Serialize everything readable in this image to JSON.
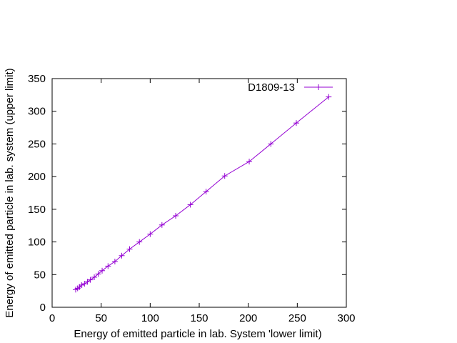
{
  "chart_data": {
    "type": "line",
    "title": "",
    "xlabel": "Energy of emitted particle in lab. System 'lower limit)",
    "ylabel": "Energy of emitted particle in lab. system (upper limit)",
    "xlim": [
      0,
      300
    ],
    "ylim": [
      0,
      350
    ],
    "xticks": [
      0,
      50,
      100,
      150,
      200,
      250,
      300
    ],
    "yticks": [
      0,
      50,
      100,
      150,
      200,
      250,
      300,
      350
    ],
    "grid": false,
    "legend_position": "top-right",
    "series": [
      {
        "name": "D1809-13",
        "color": "#9400d3",
        "marker": "plus",
        "x": [
          24,
          26,
          28,
          30,
          33,
          36,
          39,
          43,
          47,
          51,
          57,
          64,
          71,
          79,
          89,
          100,
          112,
          126,
          141,
          157,
          176,
          201,
          223,
          249,
          282
        ],
        "y": [
          27,
          29,
          31,
          34,
          36,
          39,
          42,
          46,
          51,
          56,
          63,
          70,
          79,
          89,
          100,
          112,
          126,
          140,
          157,
          177,
          201,
          223,
          250,
          282,
          322
        ]
      }
    ]
  }
}
